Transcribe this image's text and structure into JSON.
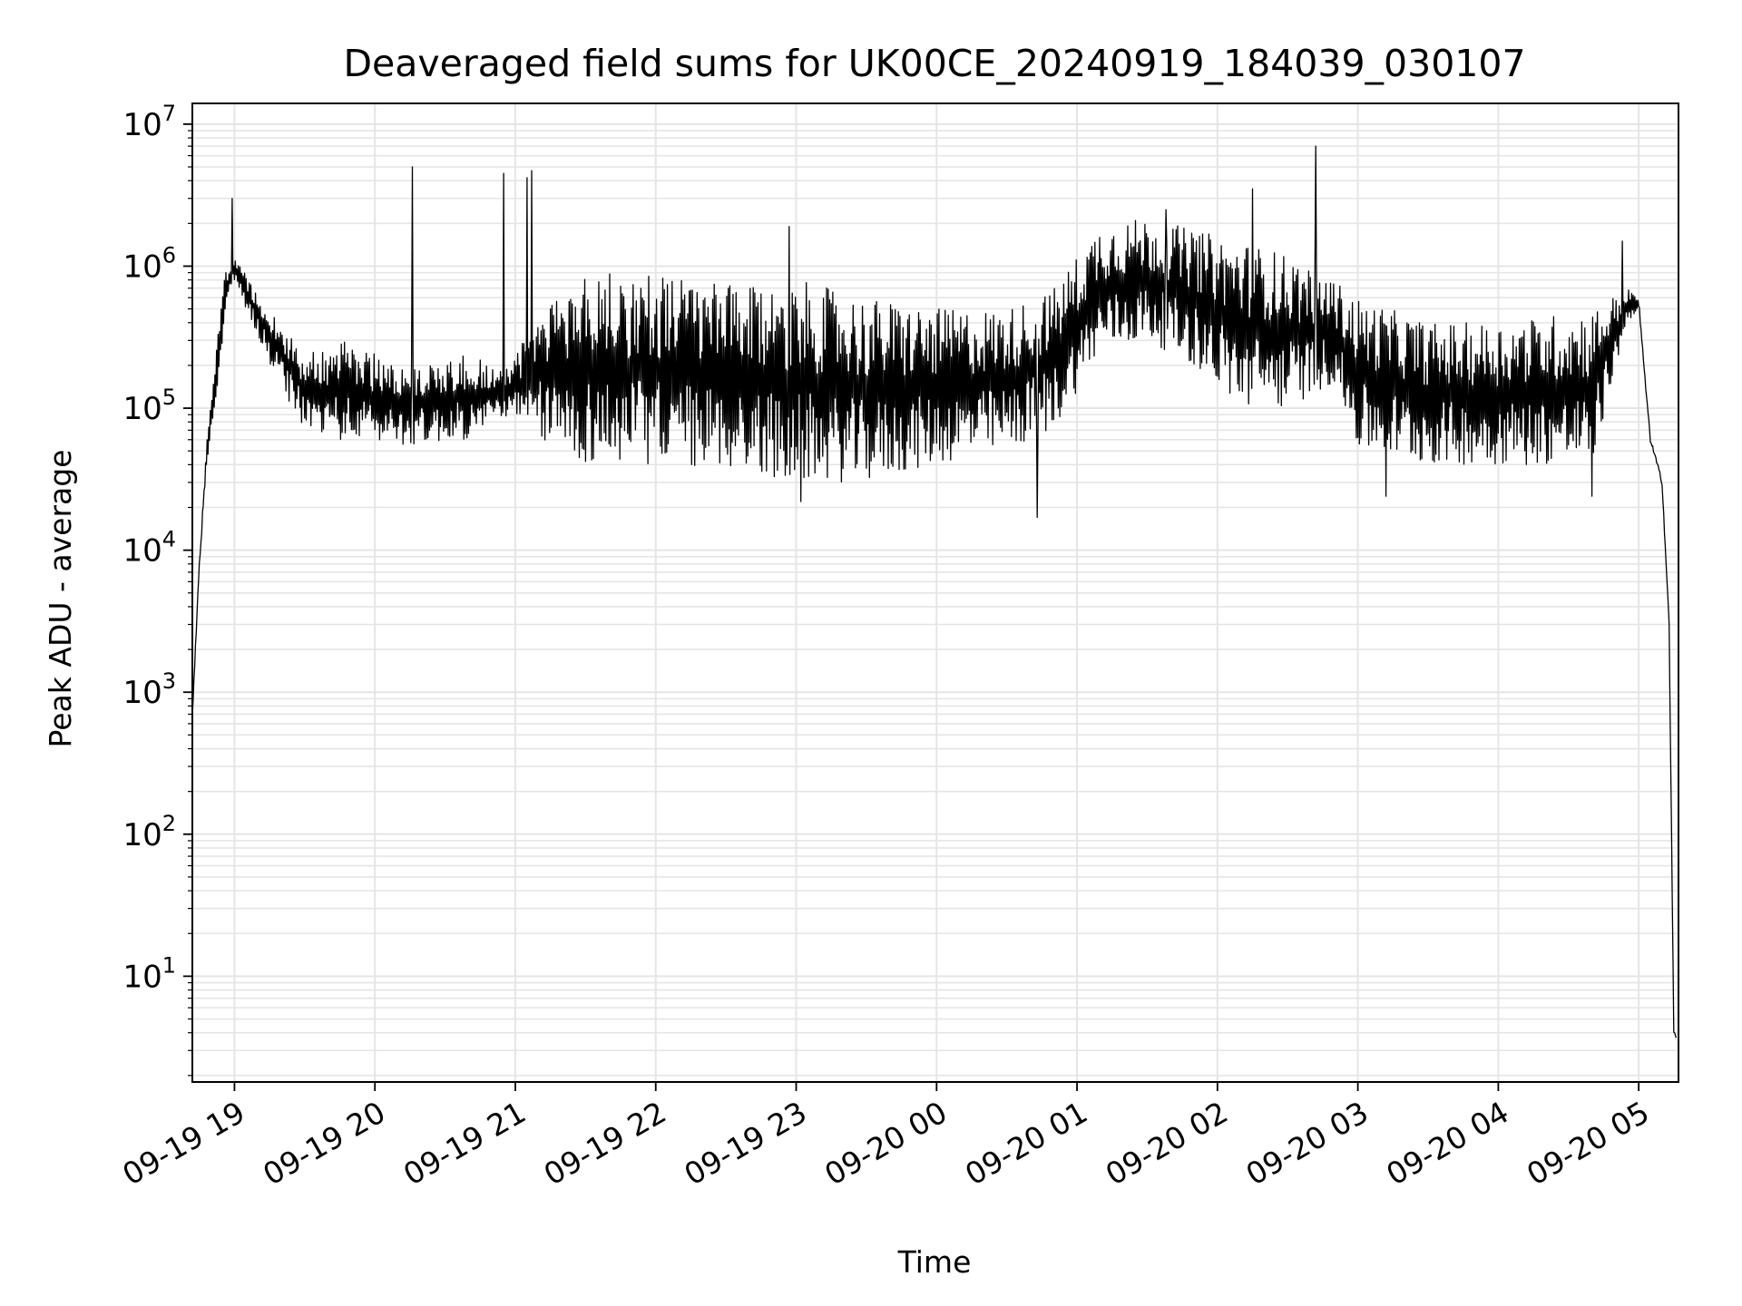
{
  "chart_data": {
    "type": "line",
    "title": "Deaveraged field sums for UK00CE_20240919_184039_030107",
    "xlabel": "Time",
    "ylabel": "Peak ADU - average",
    "yscale": "log",
    "ylim": [
      1.8,
      14000000
    ],
    "xlim": [
      "2024-09-19 18:42",
      "2024-09-20 05:17"
    ],
    "grid": true,
    "grid_color": "#e5e5e5",
    "line_color": "#000000",
    "x_ticks": [
      {
        "label": "09-19 19",
        "value": "2024-09-19 19:00"
      },
      {
        "label": "09-19 20",
        "value": "2024-09-19 20:00"
      },
      {
        "label": "09-19 21",
        "value": "2024-09-19 21:00"
      },
      {
        "label": "09-19 22",
        "value": "2024-09-19 22:00"
      },
      {
        "label": "09-19 23",
        "value": "2024-09-19 23:00"
      },
      {
        "label": "09-20 00",
        "value": "2024-09-20 00:00"
      },
      {
        "label": "09-20 01",
        "value": "2024-09-20 01:00"
      },
      {
        "label": "09-20 02",
        "value": "2024-09-20 02:00"
      },
      {
        "label": "09-20 03",
        "value": "2024-09-20 03:00"
      },
      {
        "label": "09-20 04",
        "value": "2024-09-20 04:00"
      },
      {
        "label": "09-20 05",
        "value": "2024-09-20 05:00"
      }
    ],
    "y_ticks": [
      {
        "base": "10",
        "exp": "1",
        "value": 10
      },
      {
        "base": "10",
        "exp": "2",
        "value": 100
      },
      {
        "base": "10",
        "exp": "3",
        "value": 1000
      },
      {
        "base": "10",
        "exp": "4",
        "value": 10000
      },
      {
        "base": "10",
        "exp": "5",
        "value": 100000
      },
      {
        "base": "10",
        "exp": "6",
        "value": 1000000
      },
      {
        "base": "10",
        "exp": "7",
        "value": 10000000
      }
    ],
    "series": [
      {
        "envelope": [
          {
            "x": "2024-09-19 18:42",
            "low": 700,
            "high": 700
          },
          {
            "x": "2024-09-19 18:45",
            "low": 8000,
            "high": 8000
          },
          {
            "x": "2024-09-19 18:48",
            "low": 40000,
            "high": 55000
          },
          {
            "x": "2024-09-19 18:52",
            "low": 90000,
            "high": 250000
          },
          {
            "x": "2024-09-19 18:56",
            "low": 500000,
            "high": 900000
          },
          {
            "x": "2024-09-19 19:00",
            "low": 800000,
            "high": 1200000
          },
          {
            "x": "2024-09-19 19:05",
            "low": 500000,
            "high": 900000
          },
          {
            "x": "2024-09-19 19:15",
            "low": 200000,
            "high": 500000
          },
          {
            "x": "2024-09-19 19:30",
            "low": 70000,
            "high": 250000
          },
          {
            "x": "2024-09-19 19:45",
            "low": 60000,
            "high": 300000
          },
          {
            "x": "2024-09-19 20:15",
            "low": 55000,
            "high": 200000
          },
          {
            "x": "2024-09-19 20:40",
            "low": 60000,
            "high": 250000
          },
          {
            "x": "2024-09-19 20:55",
            "low": 90000,
            "high": 180000
          },
          {
            "x": "2024-09-19 21:10",
            "low": 60000,
            "high": 500000
          },
          {
            "x": "2024-09-19 21:30",
            "low": 40000,
            "high": 900000
          },
          {
            "x": "2024-09-19 22:00",
            "low": 40000,
            "high": 900000
          },
          {
            "x": "2024-09-19 22:40",
            "low": 35000,
            "high": 700000
          },
          {
            "x": "2024-09-19 23:00",
            "low": 30000,
            "high": 800000
          },
          {
            "x": "2024-09-19 23:30",
            "low": 30000,
            "high": 600000
          },
          {
            "x": "2024-09-20 00:00",
            "low": 40000,
            "high": 500000
          },
          {
            "x": "2024-09-20 00:30",
            "low": 50000,
            "high": 500000
          },
          {
            "x": "2024-09-20 00:50",
            "low": 70000,
            "high": 700000
          },
          {
            "x": "2024-09-20 01:10",
            "low": 250000,
            "high": 2000000
          },
          {
            "x": "2024-09-20 01:30",
            "low": 300000,
            "high": 2200000
          },
          {
            "x": "2024-09-20 01:50",
            "low": 200000,
            "high": 1800000
          },
          {
            "x": "2024-09-20 02:10",
            "low": 100000,
            "high": 1500000
          },
          {
            "x": "2024-09-20 02:30",
            "low": 100000,
            "high": 1200000
          },
          {
            "x": "2024-09-20 02:50",
            "low": 150000,
            "high": 800000
          },
          {
            "x": "2024-09-20 03:00",
            "low": 50000,
            "high": 600000
          },
          {
            "x": "2024-09-20 03:30",
            "low": 40000,
            "high": 400000
          },
          {
            "x": "2024-09-20 04:00",
            "low": 40000,
            "high": 400000
          },
          {
            "x": "2024-09-20 04:40",
            "low": 40000,
            "high": 500000
          },
          {
            "x": "2024-09-20 04:55",
            "low": 400000,
            "high": 700000
          },
          {
            "x": "2024-09-20 05:00",
            "low": 500000,
            "high": 600000
          },
          {
            "x": "2024-09-20 05:05",
            "low": 60000,
            "high": 60000
          },
          {
            "x": "2024-09-20 05:10",
            "low": 30000,
            "high": 30000
          },
          {
            "x": "2024-09-20 05:13",
            "low": 3000,
            "high": 3000
          },
          {
            "x": "2024-09-20 05:15",
            "low": 4,
            "high": 4
          },
          {
            "x": "2024-09-20 05:16",
            "low": 3.8,
            "high": 3.8
          }
        ],
        "peaks": [
          {
            "x": "2024-09-19 18:59",
            "y": 3000000
          },
          {
            "x": "2024-09-19 20:16",
            "y": 5000000
          },
          {
            "x": "2024-09-19 20:55",
            "y": 4500000
          },
          {
            "x": "2024-09-19 21:07",
            "y": 4700000
          },
          {
            "x": "2024-09-19 21:05",
            "y": 4200000
          },
          {
            "x": "2024-09-19 22:57",
            "y": 1900000
          },
          {
            "x": "2024-09-20 01:38",
            "y": 2500000
          },
          {
            "x": "2024-09-20 02:15",
            "y": 3500000
          },
          {
            "x": "2024-09-20 02:42",
            "y": 7000000
          },
          {
            "x": "2024-09-20 04:53",
            "y": 1500000
          }
        ],
        "dips": [
          {
            "x": "2024-09-19 23:02",
            "y": 22000
          },
          {
            "x": "2024-09-20 00:43",
            "y": 17000
          },
          {
            "x": "2024-09-20 03:12",
            "y": 24000
          },
          {
            "x": "2024-09-20 04:40",
            "y": 24000
          }
        ]
      }
    ]
  }
}
